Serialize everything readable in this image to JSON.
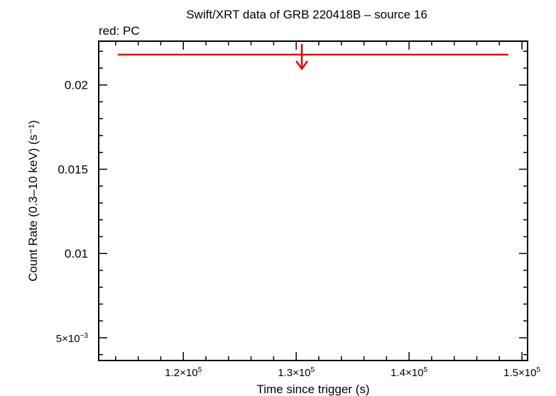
{
  "chart_data": {
    "type": "scatter",
    "title": "Swift/XRT data of GRB 220418B – source 16",
    "subtitle": "red: PC",
    "xlabel": "Time since trigger (s)",
    "ylabel": "Count Rate (0.3–10 keV) (s⁻¹)",
    "xlim": [
      112500,
      150500
    ],
    "ylim": [
      0.00365,
      0.0226
    ],
    "x_ticks": [
      {
        "value": 120000,
        "mantissa": "1.2×10",
        "exp": "5"
      },
      {
        "value": 130000,
        "mantissa": "1.3×10",
        "exp": "5"
      },
      {
        "value": 140000,
        "mantissa": "1.4×10",
        "exp": "5"
      },
      {
        "value": 150000,
        "mantissa": "1.5×10",
        "exp": "5"
      }
    ],
    "y_ticks": [
      {
        "value": 0.005,
        "mantissa": "5×10",
        "exp": "−3"
      },
      {
        "value": 0.01,
        "mantissa": "0.01",
        "exp": ""
      },
      {
        "value": 0.015,
        "mantissa": "0.015",
        "exp": ""
      },
      {
        "value": 0.02,
        "mantissa": "0.02",
        "exp": ""
      }
    ],
    "grid": false,
    "series": [
      {
        "name": "PC",
        "color": "#ee0000",
        "points": [
          {
            "x": 130500,
            "x_lo": 114200,
            "x_hi": 148800,
            "y": 0.0218,
            "upper_limit": true
          }
        ]
      }
    ]
  }
}
